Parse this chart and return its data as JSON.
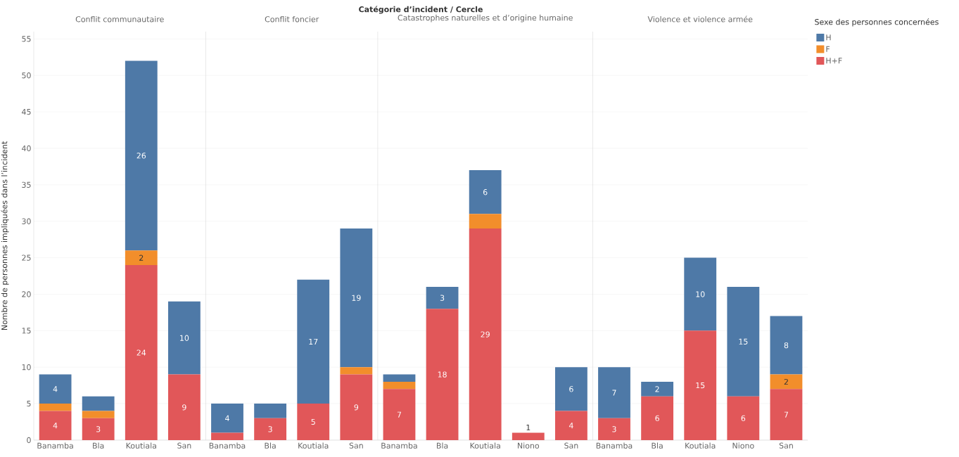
{
  "chart_data": [
    {
      "type": "bar",
      "title": "Conflit communautaire",
      "ylabel": "Nombre de personnes impliquées dans l’incident",
      "annotations": [
        "Catégorie d’incident / Cercle"
      ],
      "stacked": true,
      "grid": "y",
      "ylim": [
        0,
        56
      ],
      "yticks": [
        0,
        5,
        10,
        15,
        20,
        25,
        30,
        35,
        40,
        45,
        50,
        55
      ],
      "categories": [
        "Banamba",
        "Bla",
        "Koutiala",
        "San"
      ],
      "series": [
        {
          "color": "#e15759",
          "values": [
            4,
            3,
            24,
            9
          ],
          "value_labels": [
            "4",
            "3",
            "24",
            "9"
          ]
        },
        {
          "color": "#f28e2b",
          "values": [
            1,
            1,
            2,
            null
          ],
          "value_labels": [
            null,
            null,
            "2",
            null
          ]
        },
        {
          "color": "#4e79a7",
          "values": [
            4,
            2,
            26,
            10
          ],
          "value_labels": [
            "4",
            null,
            "26",
            "10"
          ]
        }
      ]
    },
    {
      "type": "bar",
      "title": "Conflit foncier",
      "stacked": true,
      "grid": "y",
      "ylim": [
        0,
        56
      ],
      "yticks": [
        0,
        5,
        10,
        15,
        20,
        25,
        30,
        35,
        40,
        45,
        50,
        55
      ],
      "tick_labels": "x",
      "categories": [
        "Banamba",
        "Bla",
        "Koutiala",
        "San"
      ],
      "series": [
        {
          "color": "#e15759",
          "values": [
            1,
            3,
            5,
            9
          ],
          "value_labels": [
            null,
            "3",
            "5",
            "9"
          ]
        },
        {
          "color": "#f28e2b",
          "values": [
            null,
            null,
            null,
            1
          ],
          "value_labels": [
            null,
            null,
            null,
            null
          ]
        },
        {
          "color": "#4e79a7",
          "values": [
            4,
            2,
            17,
            19
          ],
          "value_labels": [
            "4",
            null,
            "17",
            "19"
          ]
        }
      ]
    },
    {
      "type": "bar",
      "title": "Catastrophes naturelles et d’origine humaine",
      "stacked": true,
      "grid": "y",
      "ylim": [
        0,
        56
      ],
      "yticks": [
        0,
        5,
        10,
        15,
        20,
        25,
        30,
        35,
        40,
        45,
        50,
        55
      ],
      "tick_labels": "x",
      "categories": [
        "Banamba",
        "Bla",
        "Koutiala",
        "Niono",
        "San"
      ],
      "series": [
        {
          "color": "#e15759",
          "values": [
            7,
            18,
            29,
            1,
            4
          ],
          "value_labels": [
            "7",
            "18",
            "29",
            "1",
            "4"
          ]
        },
        {
          "color": "#f28e2b",
          "values": [
            1,
            null,
            2,
            null,
            null
          ],
          "value_labels": [
            null,
            null,
            null,
            null,
            null
          ]
        },
        {
          "color": "#4e79a7",
          "values": [
            1,
            3,
            6,
            null,
            6
          ],
          "value_labels": [
            null,
            "3",
            "6",
            null,
            "6"
          ]
        }
      ]
    },
    {
      "type": "bar",
      "title": "Violence et violence armée",
      "stacked": true,
      "grid": "y",
      "ylim": [
        0,
        56
      ],
      "yticks": [
        0,
        5,
        10,
        15,
        20,
        25,
        30,
        35,
        40,
        45,
        50,
        55
      ],
      "tick_labels": "x",
      "legend": "top right",
      "legend_title": "Sexe des personnes concernées",
      "categories": [
        "Banamba",
        "Bla",
        "Koutiala",
        "Niono",
        "San"
      ],
      "series": [
        {
          "name": "H+F",
          "color": "#e15759",
          "values": [
            3,
            6,
            15,
            6,
            7
          ],
          "value_labels": [
            "3",
            "6",
            "15",
            "6",
            "7"
          ]
        },
        {
          "name": "F",
          "color": "#f28e2b",
          "values": [
            null,
            null,
            null,
            null,
            2
          ],
          "value_labels": [
            null,
            null,
            null,
            null,
            "2"
          ]
        },
        {
          "name": "H",
          "color": "#4e79a7",
          "values": [
            7,
            2,
            10,
            15,
            8
          ],
          "value_labels": [
            "7",
            "2",
            "10",
            "15",
            "8"
          ]
        }
      ]
    }
  ]
}
